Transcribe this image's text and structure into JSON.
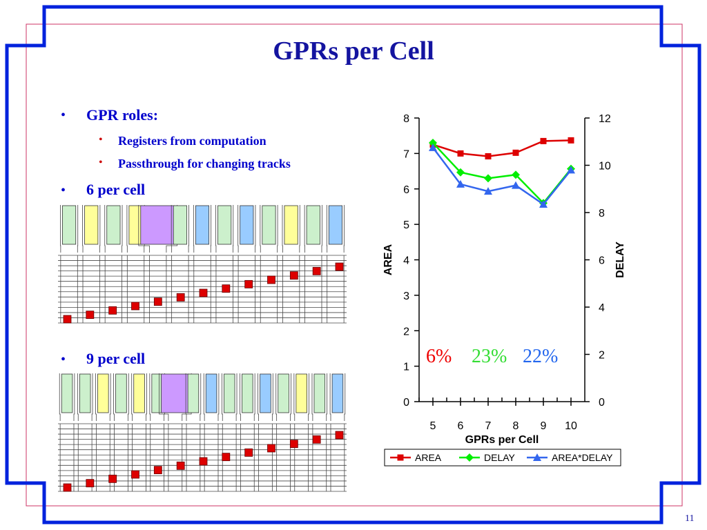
{
  "slide": {
    "title": "GPRs per Cell",
    "page_number": "11",
    "bullets": {
      "gpr_roles": "GPR roles:",
      "registers_from_computation": "Registers from computation",
      "passthrough": "Passthrough for changing tracks",
      "six_per_cell": "6 per cell",
      "nine_per_cell": "9 per cell"
    },
    "colors": {
      "frame_blue": "#0022dd",
      "inner_border": "#cc3366",
      "title": "#1414a0",
      "bullet_text": "#0000cc",
      "bullet_dot": "#0000cc",
      "sub_bullet_dot": "#cc0000",
      "register_marker": "#dd0000",
      "cell_green": "#ccf0cc",
      "cell_yellow": "#ffff99",
      "cell_purple": "#cc99ff",
      "cell_blue": "#99ccff"
    },
    "diagram_6": {
      "cell_colors": [
        "green",
        "yellow",
        "green",
        "yellow",
        "purple",
        "green",
        "blue",
        "green",
        "blue",
        "green",
        "yellow",
        "green",
        "blue"
      ],
      "register_count": 13
    },
    "diagram_9": {
      "cell_colors": [
        "green",
        "green",
        "yellow",
        "green",
        "yellow",
        "green",
        "purple",
        "green",
        "blue",
        "green",
        "green",
        "blue",
        "green",
        "yellow",
        "green",
        "blue"
      ],
      "register_count": 13
    }
  },
  "chart_data": {
    "type": "line",
    "x": [
      5,
      6,
      7,
      8,
      9,
      10
    ],
    "xlabel": "GPRs per Cell",
    "ylabel": "AREA",
    "y2label": "DELAY",
    "ylim": [
      0,
      8
    ],
    "y2lim": [
      0,
      12
    ],
    "y_ticks": [
      0,
      1,
      2,
      3,
      4,
      5,
      6,
      7,
      8
    ],
    "y2_ticks": [
      0,
      2,
      4,
      6,
      8,
      10,
      12
    ],
    "series": [
      {
        "name": "AREA",
        "axis": "left",
        "color": "#dd0000",
        "marker": "square",
        "values": [
          7.25,
          7.0,
          6.92,
          7.02,
          7.35,
          7.37
        ]
      },
      {
        "name": "DELAY",
        "axis": "right",
        "color": "#00ee00",
        "marker": "diamond",
        "values": [
          10.95,
          9.7,
          9.45,
          9.6,
          8.4,
          9.85
        ]
      },
      {
        "name": "AREA*DELAY",
        "axis": "right",
        "color": "#3366ee",
        "marker": "triangle",
        "values": [
          10.75,
          9.2,
          8.9,
          9.15,
          8.35,
          9.8
        ]
      }
    ],
    "annotations": [
      {
        "text": "6%",
        "color": "#ee0000"
      },
      {
        "text": "23%",
        "color": "#33dd33"
      },
      {
        "text": "22%",
        "color": "#2266ee"
      }
    ],
    "legend_position": "bottom"
  }
}
